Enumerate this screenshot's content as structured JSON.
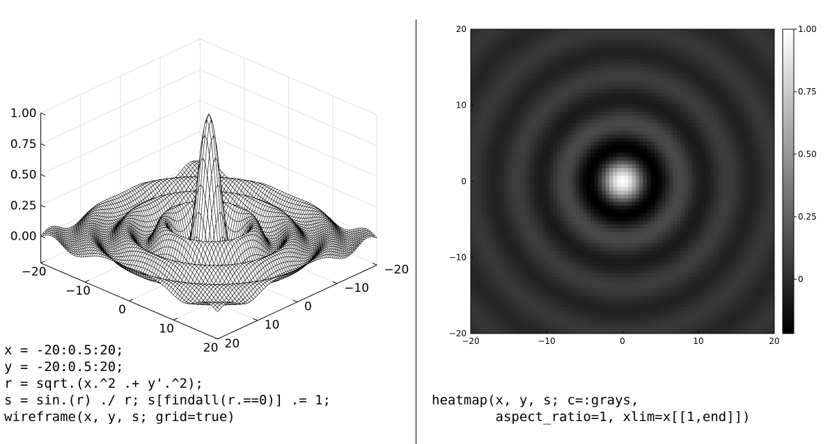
{
  "chart_data": [
    {
      "type": "surface",
      "style": "wireframe",
      "function": "sin(r)/r, r = sqrt(x^2 + y^2), value 1 at r = 0",
      "x": {
        "start": -20,
        "step": 0.5,
        "stop": 20,
        "ticks": [
          "−20",
          "−10",
          "0",
          "10",
          "20"
        ]
      },
      "y": {
        "start": -20,
        "step": 0.5,
        "stop": 20,
        "ticks": [
          "−20",
          "−10",
          "0",
          "10",
          "20"
        ]
      },
      "zlim": [
        -0.22,
        1.0
      ],
      "z_ticks": [
        "0.00",
        "0.25",
        "0.50",
        "0.75",
        "1.00"
      ],
      "grid": true,
      "line_color": "#000000",
      "title": "",
      "xlabel": "",
      "ylabel": "",
      "zlabel": ""
    },
    {
      "type": "heatmap",
      "function": "sin(r)/r, r = sqrt(x^2 + y^2), value 1 at r = 0",
      "x": {
        "start": -20,
        "step": 0.5,
        "stop": 20,
        "ticks": [
          "−20",
          "−10",
          "0",
          "10",
          "20"
        ]
      },
      "y": {
        "start": -20,
        "step": 0.5,
        "stop": 20,
        "ticks": [
          "−20",
          "−10",
          "0",
          "10",
          "20"
        ]
      },
      "xlim": [
        -20,
        20
      ],
      "ylim": [
        -20,
        20
      ],
      "colormap": "grays",
      "colorbar": {
        "range": [
          -0.2172,
          1.0
        ],
        "ticks": [
          "0",
          "0.25",
          "0.50",
          "0.75",
          "1.00"
        ]
      },
      "aspect_ratio": 1,
      "title": "",
      "xlabel": "",
      "ylabel": ""
    }
  ],
  "code_left": [
    "x = -20:0.5:20;",
    "y = -20:0.5:20;",
    "r = sqrt.(x.^2 .+ y'.^2);",
    "s = sin.(r) ./ r; s[findall(r.==0)] .= 1;",
    "wireframe(x, y, s; grid=true)"
  ],
  "code_right": [
    "heatmap(x, y, s; c=:grays,",
    "        aspect_ratio=1, xlim=x[[1,end]])"
  ]
}
